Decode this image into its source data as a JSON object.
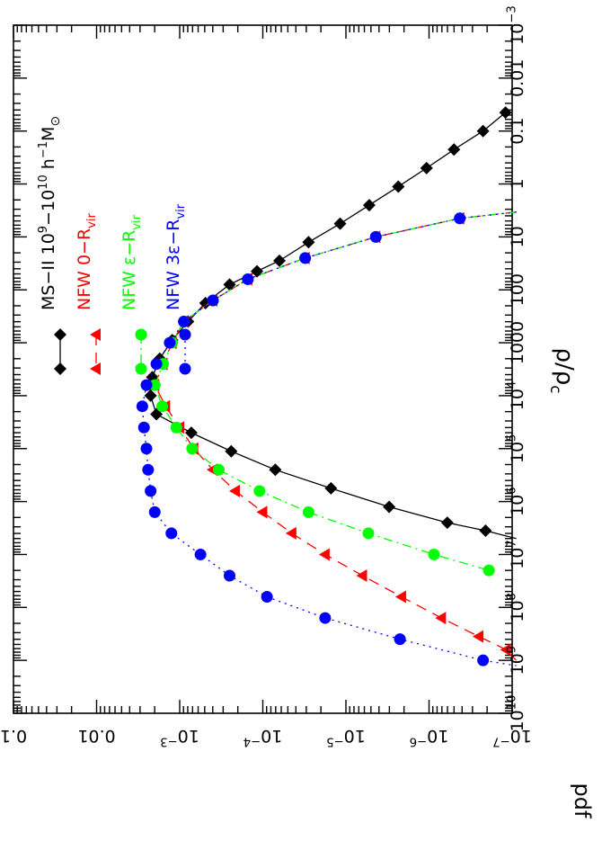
{
  "chart_data": {
    "type": "line",
    "orientation": "rotated-90-clockwise",
    "xlabel": "ρ/ρ",
    "xlabel_sub": "c",
    "ylabel": "pdf",
    "xscale": "log",
    "yscale": "log",
    "xlim_log10": [
      -3,
      10
    ],
    "ylim_log10": [
      -7,
      -1
    ],
    "xticks": [
      {
        "main": "10",
        "sup": "−3",
        "log": -3
      },
      {
        "main": "0.01",
        "sup": "",
        "log": -2
      },
      {
        "main": "0.1",
        "sup": "",
        "log": -1
      },
      {
        "main": "1",
        "sup": "",
        "log": 0
      },
      {
        "main": "10",
        "sup": "",
        "log": 1
      },
      {
        "main": "100",
        "sup": "",
        "log": 2
      },
      {
        "main": "1000",
        "sup": "",
        "log": 3
      },
      {
        "main": "10",
        "sup": "4",
        "log": 4
      },
      {
        "main": "10",
        "sup": "5",
        "log": 5
      },
      {
        "main": "10",
        "sup": "6",
        "log": 6
      },
      {
        "main": "10",
        "sup": "7",
        "log": 7
      },
      {
        "main": "10",
        "sup": "8",
        "log": 8
      },
      {
        "main": "10",
        "sup": "9",
        "log": 9
      },
      {
        "main": "10",
        "sup": "10",
        "log": 10
      }
    ],
    "yticks": [
      {
        "main": "10",
        "sup": "−7",
        "log": -7
      },
      {
        "main": "10",
        "sup": "−6",
        "log": -6
      },
      {
        "main": "10",
        "sup": "−5",
        "log": -5
      },
      {
        "main": "10",
        "sup": "−4",
        "log": -4
      },
      {
        "main": "10",
        "sup": "−3",
        "log": -3
      },
      {
        "main": "0.01",
        "sup": "",
        "log": -2
      },
      {
        "main": "0.1",
        "sup": "",
        "log": -1
      }
    ],
    "series": [
      {
        "name": "MS-II",
        "legend": {
          "prefix": "MS−II  10",
          "p1": "9",
          "mid": "−10",
          "p2": "10",
          "mid2": " h",
          "p3": "−1",
          "tail": "M",
          "sub": "⊙"
        },
        "color": "#000000",
        "line": "solid",
        "marker": "diamond",
        "points": [
          [
            -1.35,
            -6.92
          ],
          [
            -1.0,
            -6.65
          ],
          [
            -0.65,
            -6.3
          ],
          [
            -0.3,
            -5.97
          ],
          [
            0.05,
            -5.63
          ],
          [
            0.4,
            -5.28
          ],
          [
            0.75,
            -4.93
          ],
          [
            1.1,
            -4.55
          ],
          [
            1.45,
            -4.2
          ],
          [
            1.65,
            -3.93
          ],
          [
            1.9,
            -3.6
          ],
          [
            2.25,
            -3.31
          ],
          [
            2.6,
            -3.1
          ],
          [
            2.95,
            -2.91
          ],
          [
            3.3,
            -2.76
          ],
          [
            3.65,
            -2.67
          ],
          [
            4.0,
            -2.65
          ],
          [
            4.35,
            -2.72
          ],
          [
            4.7,
            -3.14
          ],
          [
            5.05,
            -3.62
          ],
          [
            5.4,
            -4.15
          ],
          [
            5.75,
            -4.82
          ],
          [
            6.1,
            -5.52
          ],
          [
            6.4,
            -6.22
          ],
          [
            6.55,
            -6.68
          ],
          [
            6.7,
            -7.05
          ]
        ]
      },
      {
        "name": "NFW 0-Rvir",
        "legend": {
          "prefix": "NFW   0−R",
          "sub": "vir"
        },
        "color": "#ff0000",
        "line": "dashed",
        "marker": "triangle",
        "points": [
          [
            0.53,
            -7.05
          ],
          [
            0.65,
            -6.37
          ],
          [
            1.0,
            -5.36
          ],
          [
            1.4,
            -4.51
          ],
          [
            1.8,
            -3.82
          ],
          [
            2.2,
            -3.4
          ],
          [
            2.6,
            -3.05
          ],
          [
            3.0,
            -2.91
          ],
          [
            3.4,
            -2.8
          ],
          [
            3.8,
            -2.7
          ],
          [
            4.2,
            -2.83
          ],
          [
            4.6,
            -3.0
          ],
          [
            5.0,
            -3.17
          ],
          [
            5.4,
            -3.4
          ],
          [
            5.8,
            -3.67
          ],
          [
            6.2,
            -4.0
          ],
          [
            6.6,
            -4.35
          ],
          [
            7.0,
            -4.75
          ],
          [
            7.4,
            -5.2
          ],
          [
            7.8,
            -5.67
          ],
          [
            8.2,
            -6.15
          ],
          [
            8.55,
            -6.6
          ],
          [
            8.8,
            -6.93
          ],
          [
            9.0,
            -7.05
          ]
        ]
      },
      {
        "name": "NFW e-Rvir",
        "legend": {
          "prefix": "NFW   ε−R",
          "sub": "vir"
        },
        "color": "#00ff00",
        "line": "dashdot",
        "marker": "circle",
        "points": [
          [
            0.53,
            -7.05
          ],
          [
            0.65,
            -6.37
          ],
          [
            1.0,
            -5.36
          ],
          [
            1.4,
            -4.51
          ],
          [
            1.8,
            -3.82
          ],
          [
            2.2,
            -3.4
          ],
          [
            2.6,
            -3.05
          ],
          [
            3.0,
            -2.91
          ],
          [
            3.4,
            -2.8
          ],
          [
            3.8,
            -2.7
          ],
          [
            4.2,
            -2.79
          ],
          [
            4.6,
            -2.96
          ],
          [
            5.0,
            -3.15
          ],
          [
            5.4,
            -3.47
          ],
          [
            5.8,
            -3.96
          ],
          [
            6.2,
            -4.55
          ],
          [
            6.6,
            -5.27
          ],
          [
            7.0,
            -6.06
          ],
          [
            7.3,
            -6.72
          ]
        ]
      },
      {
        "name": "NFW 3e-Rvir",
        "legend": {
          "prefix": "NFW   3ε−R",
          "sub": "vir"
        },
        "color": "#0000ff",
        "line": "dotted",
        "marker": "circle",
        "points": [
          [
            0.53,
            -7.05
          ],
          [
            0.65,
            -6.37
          ],
          [
            1.0,
            -5.36
          ],
          [
            1.4,
            -4.51
          ],
          [
            1.8,
            -3.82
          ],
          [
            2.2,
            -3.4
          ],
          [
            2.6,
            -3.05
          ],
          [
            3.0,
            -2.88
          ],
          [
            3.4,
            -2.72
          ],
          [
            3.8,
            -2.6
          ],
          [
            4.2,
            -2.55
          ],
          [
            4.6,
            -2.57
          ],
          [
            5.0,
            -2.6
          ],
          [
            5.4,
            -2.62
          ],
          [
            5.8,
            -2.65
          ],
          [
            6.2,
            -2.7
          ],
          [
            6.6,
            -2.9
          ],
          [
            7.0,
            -3.25
          ],
          [
            7.4,
            -3.6
          ],
          [
            7.8,
            -4.05
          ],
          [
            8.2,
            -4.75
          ],
          [
            8.6,
            -5.65
          ],
          [
            9.0,
            -6.65
          ],
          [
            9.1,
            -7.05
          ]
        ]
      }
    ]
  }
}
